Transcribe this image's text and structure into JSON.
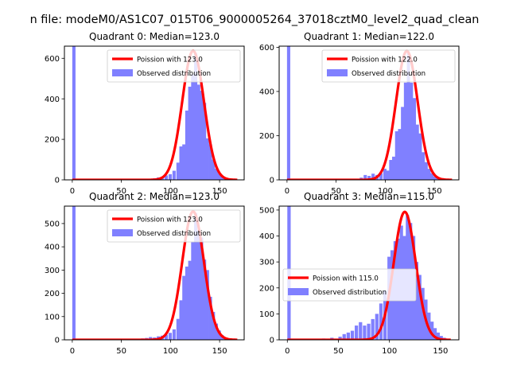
{
  "figure": {
    "suptitle": "n file: modeM0/AS1C07_015T06_9000005264_37018cztM0_level2_quad_clean"
  },
  "colors": {
    "poisson_line": "#ff0000",
    "observed_bars": "#8080ff",
    "axes_edge": "#000000",
    "background": "#ffffff"
  },
  "chart_data": [
    {
      "type": "bar",
      "title": "Quadrant 0: Median=123.0",
      "xlim": [
        -8,
        175
      ],
      "ylim": [
        0,
        660
      ],
      "xticks": [
        0,
        50,
        100,
        150
      ],
      "yticks": [
        0,
        200,
        400,
        600
      ],
      "legend_placement": "top-right",
      "series": [
        {
          "name": "Poission with 123.0",
          "kind": "line",
          "median": 123.0,
          "peak": 637,
          "x_range": [
            0,
            168
          ]
        },
        {
          "name": "Observed distribution",
          "kind": "histogram",
          "bin_width": 3.3,
          "bins": [
            {
              "x": 0,
              "y": 660
            },
            {
              "x": 78,
              "y": 6
            },
            {
              "x": 82,
              "y": 8
            },
            {
              "x": 86,
              "y": 12
            },
            {
              "x": 90,
              "y": 14
            },
            {
              "x": 94,
              "y": 22
            },
            {
              "x": 98,
              "y": 28
            },
            {
              "x": 102,
              "y": 45
            },
            {
              "x": 106,
              "y": 85
            },
            {
              "x": 109,
              "y": 165
            },
            {
              "x": 112,
              "y": 175
            },
            {
              "x": 115,
              "y": 342
            },
            {
              "x": 118,
              "y": 460
            },
            {
              "x": 121,
              "y": 520
            },
            {
              "x": 124,
              "y": 625
            },
            {
              "x": 127,
              "y": 470
            },
            {
              "x": 130,
              "y": 440
            },
            {
              "x": 133,
              "y": 380
            },
            {
              "x": 136,
              "y": 205
            },
            {
              "x": 139,
              "y": 175
            },
            {
              "x": 142,
              "y": 100
            },
            {
              "x": 145,
              "y": 55
            },
            {
              "x": 148,
              "y": 32
            },
            {
              "x": 151,
              "y": 18
            },
            {
              "x": 154,
              "y": 10
            },
            {
              "x": 157,
              "y": 5
            }
          ]
        }
      ]
    },
    {
      "type": "bar",
      "title": "Quadrant 1: Median=122.0",
      "xlim": [
        -8,
        175
      ],
      "ylim": [
        0,
        605
      ],
      "xticks": [
        0,
        50,
        100,
        150
      ],
      "yticks": [
        0,
        200,
        400,
        600
      ],
      "legend_placement": "top-right",
      "series": [
        {
          "name": "Poission with 122.0",
          "kind": "line",
          "median": 122.0,
          "peak": 583,
          "x_range": [
            0,
            168
          ]
        },
        {
          "name": "Observed distribution",
          "kind": "histogram",
          "bin_width": 3.3,
          "bins": [
            {
              "x": 0,
              "y": 605
            },
            {
              "x": 74,
              "y": 10
            },
            {
              "x": 78,
              "y": 22
            },
            {
              "x": 82,
              "y": 18
            },
            {
              "x": 86,
              "y": 28
            },
            {
              "x": 90,
              "y": 22
            },
            {
              "x": 94,
              "y": 30
            },
            {
              "x": 98,
              "y": 50
            },
            {
              "x": 101,
              "y": 42
            },
            {
              "x": 104,
              "y": 90
            },
            {
              "x": 107,
              "y": 105
            },
            {
              "x": 110,
              "y": 220
            },
            {
              "x": 113,
              "y": 230
            },
            {
              "x": 116,
              "y": 330
            },
            {
              "x": 119,
              "y": 440
            },
            {
              "x": 122,
              "y": 575
            },
            {
              "x": 125,
              "y": 440
            },
            {
              "x": 128,
              "y": 370
            },
            {
              "x": 131,
              "y": 250
            },
            {
              "x": 134,
              "y": 210
            },
            {
              "x": 137,
              "y": 125
            },
            {
              "x": 140,
              "y": 80
            },
            {
              "x": 143,
              "y": 50
            },
            {
              "x": 146,
              "y": 30
            },
            {
              "x": 149,
              "y": 15
            },
            {
              "x": 152,
              "y": 8
            }
          ]
        }
      ]
    },
    {
      "type": "bar",
      "title": "Quadrant 2: Median=123.0",
      "xlim": [
        -8,
        175
      ],
      "ylim": [
        0,
        575
      ],
      "xticks": [
        0,
        50,
        100,
        150
      ],
      "yticks": [
        0,
        100,
        200,
        300,
        400,
        500
      ],
      "legend_placement": "top-right",
      "series": [
        {
          "name": "Poission with 123.0",
          "kind": "line",
          "median": 123.0,
          "peak": 552,
          "x_range": [
            0,
            168
          ]
        },
        {
          "name": "Observed distribution",
          "kind": "histogram",
          "bin_width": 3.3,
          "bins": [
            {
              "x": 0,
              "y": 575
            },
            {
              "x": 70,
              "y": 6
            },
            {
              "x": 74,
              "y": 8
            },
            {
              "x": 78,
              "y": 12
            },
            {
              "x": 82,
              "y": 10
            },
            {
              "x": 86,
              "y": 15
            },
            {
              "x": 90,
              "y": 18
            },
            {
              "x": 94,
              "y": 22
            },
            {
              "x": 98,
              "y": 30
            },
            {
              "x": 102,
              "y": 45
            },
            {
              "x": 106,
              "y": 90
            },
            {
              "x": 109,
              "y": 170
            },
            {
              "x": 112,
              "y": 275
            },
            {
              "x": 115,
              "y": 315
            },
            {
              "x": 118,
              "y": 340
            },
            {
              "x": 121,
              "y": 420
            },
            {
              "x": 124,
              "y": 545
            },
            {
              "x": 127,
              "y": 470
            },
            {
              "x": 130,
              "y": 440
            },
            {
              "x": 133,
              "y": 345
            },
            {
              "x": 136,
              "y": 300
            },
            {
              "x": 139,
              "y": 185
            },
            {
              "x": 142,
              "y": 120
            },
            {
              "x": 145,
              "y": 70
            },
            {
              "x": 148,
              "y": 40
            },
            {
              "x": 151,
              "y": 20
            },
            {
              "x": 154,
              "y": 8
            }
          ]
        }
      ]
    },
    {
      "type": "bar",
      "title": "Quadrant 3: Median=115.0",
      "xlim": [
        -8,
        168
      ],
      "ylim": [
        0,
        515
      ],
      "xticks": [
        0,
        50,
        100,
        150
      ],
      "yticks": [
        0,
        100,
        200,
        300,
        400,
        500
      ],
      "legend_placement": "center-left",
      "series": [
        {
          "name": "Poission with 115.0",
          "kind": "line",
          "median": 115.0,
          "peak": 493,
          "x_range": [
            0,
            160
          ]
        },
        {
          "name": "Observed distribution",
          "kind": "histogram",
          "bin_width": 3.3,
          "bins": [
            {
              "x": 0,
              "y": 515
            },
            {
              "x": 26,
              "y": 3
            },
            {
              "x": 34,
              "y": 5
            },
            {
              "x": 42,
              "y": 8
            },
            {
              "x": 50,
              "y": 12
            },
            {
              "x": 54,
              "y": 22
            },
            {
              "x": 58,
              "y": 28
            },
            {
              "x": 62,
              "y": 35
            },
            {
              "x": 66,
              "y": 55
            },
            {
              "x": 70,
              "y": 68
            },
            {
              "x": 74,
              "y": 55
            },
            {
              "x": 78,
              "y": 62
            },
            {
              "x": 82,
              "y": 80
            },
            {
              "x": 86,
              "y": 100
            },
            {
              "x": 90,
              "y": 140
            },
            {
              "x": 94,
              "y": 190
            },
            {
              "x": 98,
              "y": 320
            },
            {
              "x": 101,
              "y": 345
            },
            {
              "x": 104,
              "y": 380
            },
            {
              "x": 107,
              "y": 390
            },
            {
              "x": 110,
              "y": 440
            },
            {
              "x": 113,
              "y": 400
            },
            {
              "x": 116,
              "y": 480
            },
            {
              "x": 119,
              "y": 450
            },
            {
              "x": 122,
              "y": 400
            },
            {
              "x": 125,
              "y": 300
            },
            {
              "x": 128,
              "y": 250
            },
            {
              "x": 131,
              "y": 200
            },
            {
              "x": 134,
              "y": 155
            },
            {
              "x": 137,
              "y": 105
            },
            {
              "x": 140,
              "y": 70
            },
            {
              "x": 143,
              "y": 45
            },
            {
              "x": 146,
              "y": 28
            },
            {
              "x": 149,
              "y": 15
            },
            {
              "x": 152,
              "y": 8
            }
          ]
        }
      ]
    }
  ]
}
